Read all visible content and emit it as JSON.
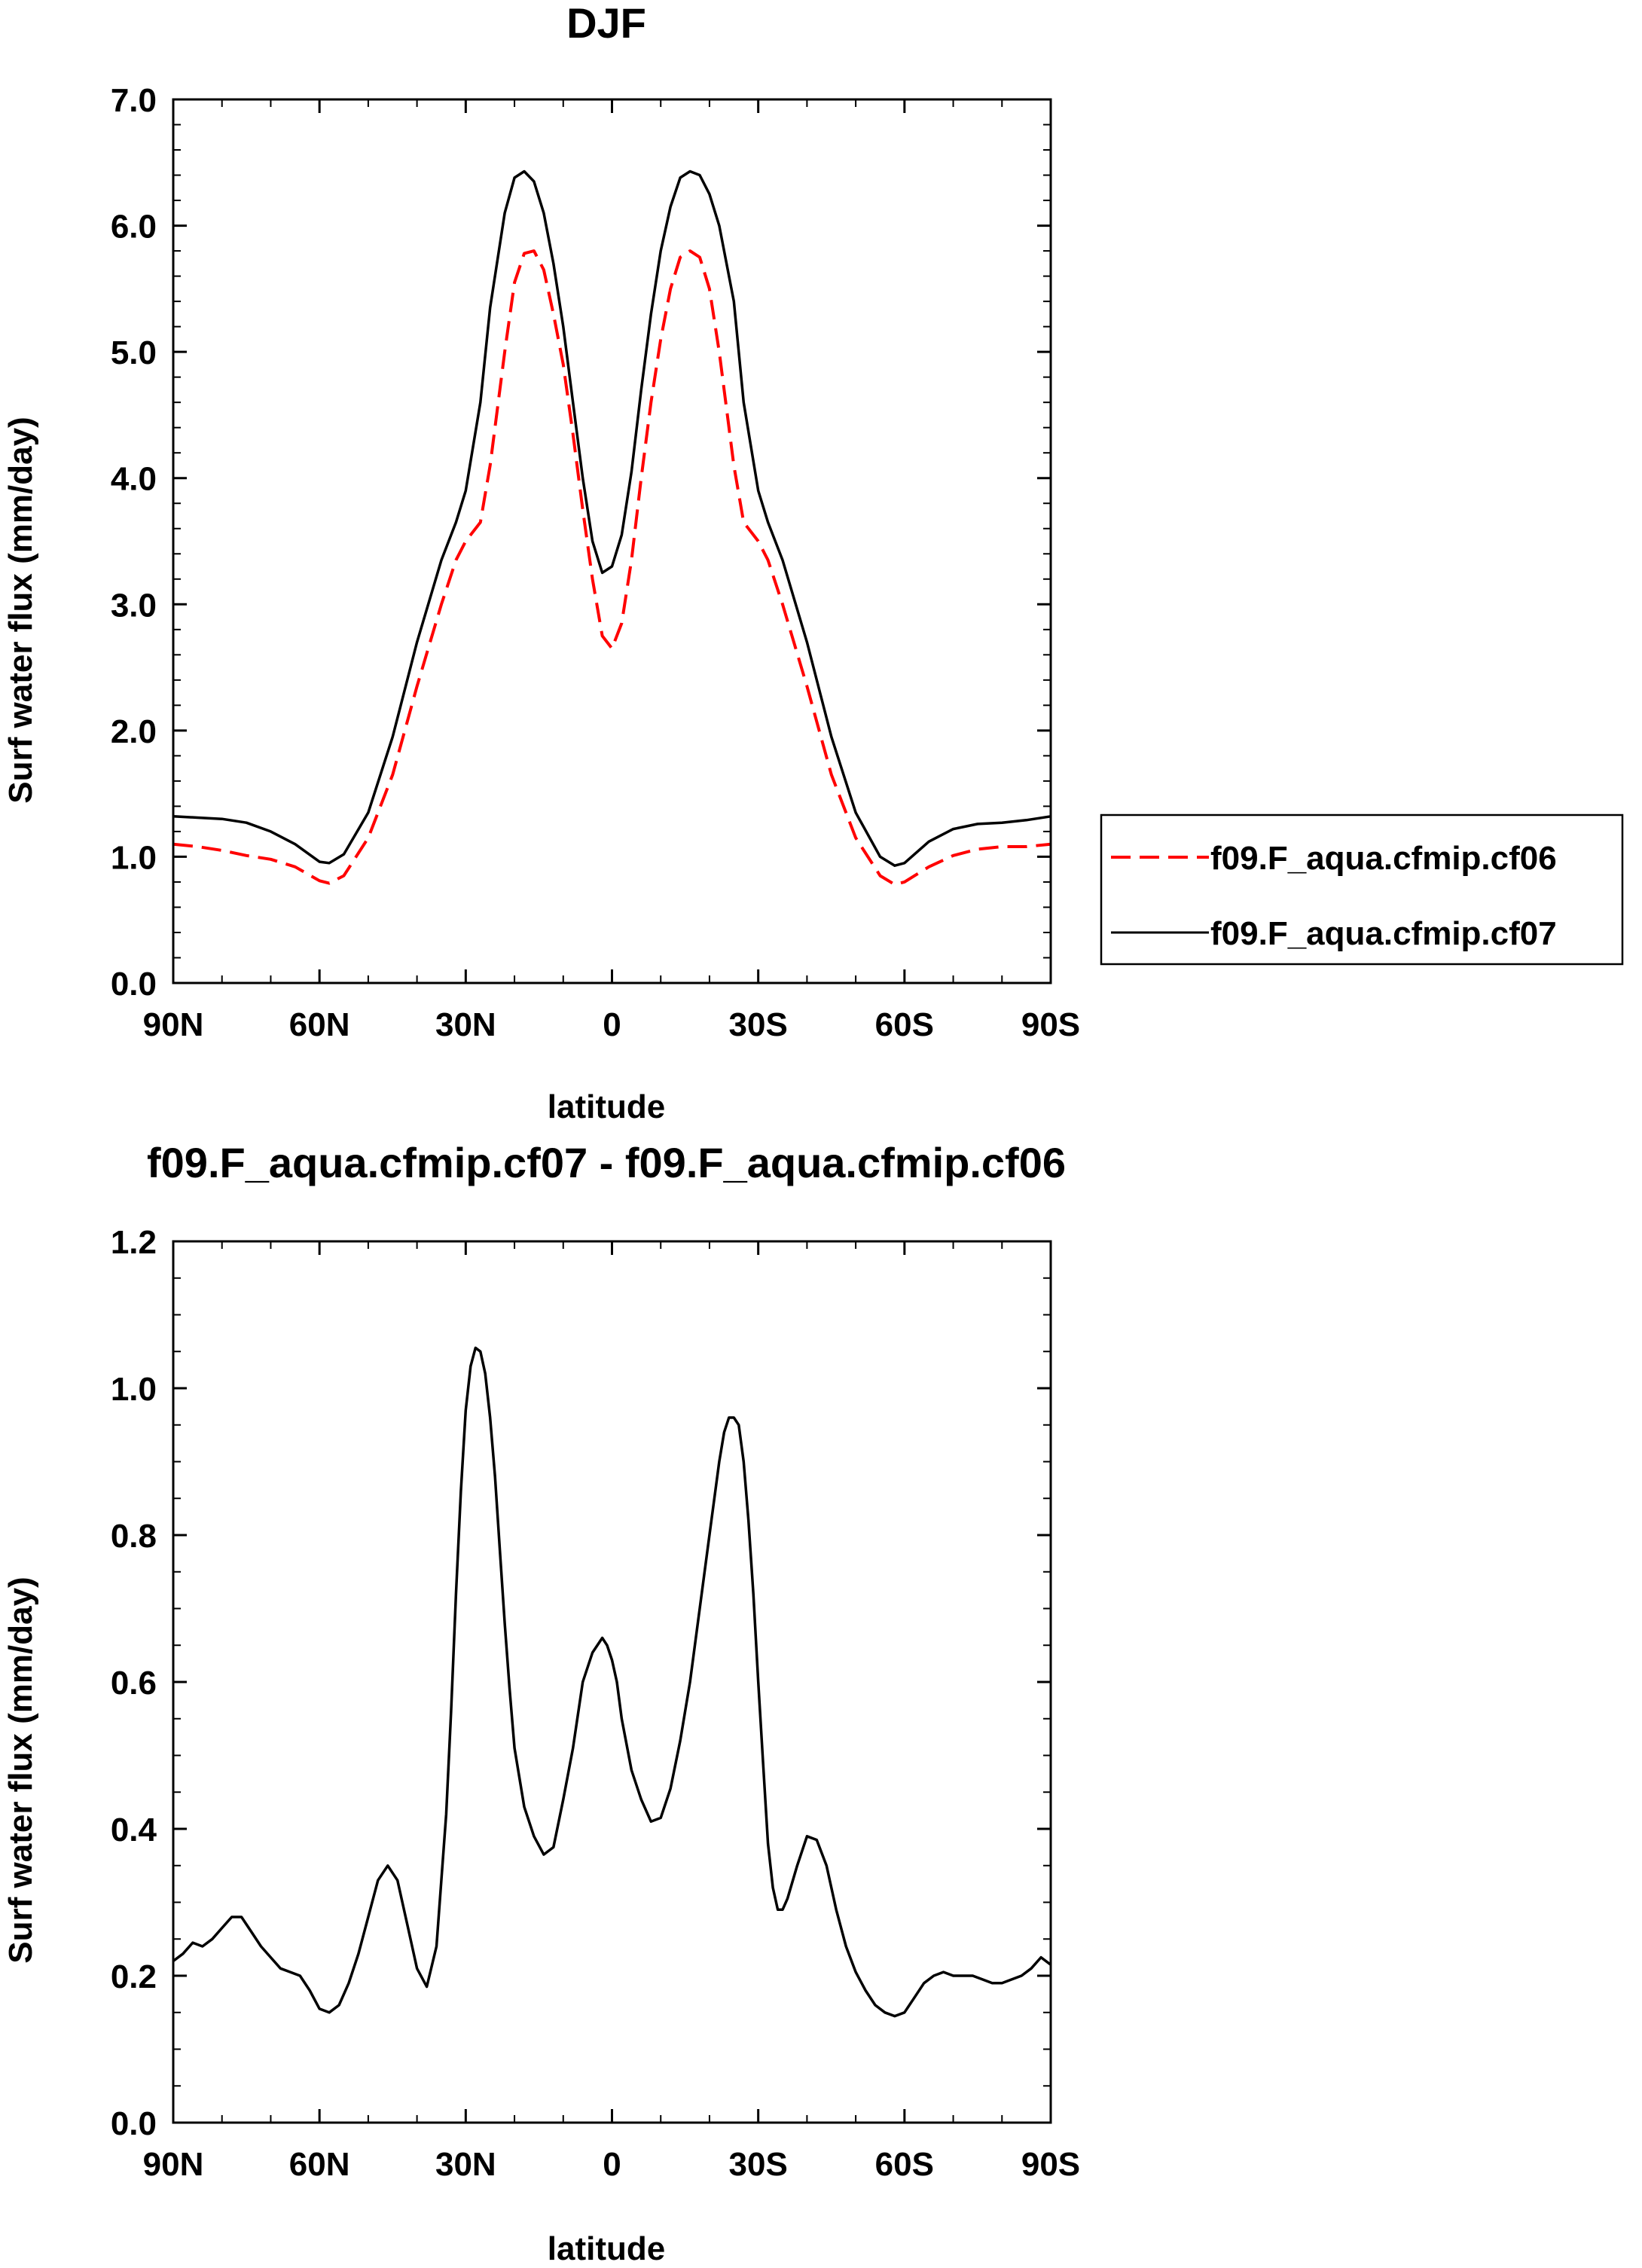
{
  "chart_data": [
    {
      "type": "line",
      "title": "DJF",
      "xlabel": "latitude",
      "ylabel": "Surf water flux (mm/day)",
      "xlim": [
        90,
        -90
      ],
      "ylim": [
        0,
        7
      ],
      "x_ticks": [
        90,
        60,
        30,
        0,
        -30,
        -60,
        -90
      ],
      "x_tick_labels": [
        "90N",
        "60N",
        "30N",
        "0",
        "30S",
        "60S",
        "90S"
      ],
      "y_ticks": [
        0,
        1,
        2,
        3,
        4,
        5,
        6,
        7
      ],
      "y_tick_labels": [
        "0.0",
        "1.0",
        "2.0",
        "3.0",
        "4.0",
        "5.0",
        "6.0",
        "7.0"
      ],
      "legend_position": "right",
      "series": [
        {
          "name": "f09.F_aqua.cfmip.cf06",
          "color": "#ff0000",
          "dash": "dashed",
          "x": [
            90,
            85,
            80,
            75,
            70,
            65,
            60,
            58,
            55,
            50,
            45,
            40,
            35,
            32,
            30,
            27,
            25,
            22,
            20,
            18,
            16,
            14,
            12,
            10,
            8,
            6,
            4,
            2,
            0,
            -2,
            -4,
            -6,
            -8,
            -10,
            -12,
            -14,
            -16,
            -18,
            -20,
            -22,
            -25,
            -27,
            -30,
            -32,
            -35,
            -40,
            -45,
            -50,
            -55,
            -58,
            -60,
            -65,
            -70,
            -75,
            -80,
            -85,
            -90
          ],
          "values": [
            1.1,
            1.08,
            1.05,
            1.01,
            0.98,
            0.92,
            0.81,
            0.79,
            0.85,
            1.15,
            1.65,
            2.35,
            3.0,
            3.35,
            3.5,
            3.65,
            4.1,
            5.0,
            5.55,
            5.78,
            5.8,
            5.65,
            5.3,
            4.9,
            4.35,
            3.75,
            3.2,
            2.75,
            2.65,
            2.85,
            3.35,
            4.0,
            4.6,
            5.1,
            5.5,
            5.75,
            5.8,
            5.75,
            5.5,
            5.0,
            4.1,
            3.65,
            3.5,
            3.35,
            3.0,
            2.35,
            1.65,
            1.15,
            0.85,
            0.78,
            0.8,
            0.92,
            1.01,
            1.06,
            1.08,
            1.08,
            1.1
          ]
        },
        {
          "name": "f09.F_aqua.cfmip.cf07",
          "color": "#000000",
          "dash": "solid",
          "x": [
            90,
            85,
            80,
            75,
            70,
            65,
            60,
            58,
            55,
            50,
            45,
            40,
            35,
            32,
            30,
            27,
            25,
            22,
            20,
            18,
            16,
            14,
            12,
            10,
            8,
            6,
            4,
            2,
            0,
            -2,
            -4,
            -6,
            -8,
            -10,
            -12,
            -14,
            -16,
            -18,
            -20,
            -22,
            -25,
            -27,
            -30,
            -32,
            -35,
            -40,
            -45,
            -50,
            -55,
            -58,
            -60,
            -65,
            -70,
            -75,
            -80,
            -85,
            -90
          ],
          "values": [
            1.32,
            1.31,
            1.3,
            1.27,
            1.2,
            1.1,
            0.96,
            0.95,
            1.02,
            1.35,
            1.95,
            2.7,
            3.35,
            3.65,
            3.9,
            4.6,
            5.35,
            6.1,
            6.38,
            6.43,
            6.35,
            6.1,
            5.7,
            5.2,
            4.6,
            4.0,
            3.5,
            3.25,
            3.3,
            3.55,
            4.05,
            4.7,
            5.3,
            5.8,
            6.15,
            6.38,
            6.43,
            6.4,
            6.25,
            6.0,
            5.4,
            4.6,
            3.9,
            3.65,
            3.35,
            2.7,
            1.95,
            1.35,
            1.0,
            0.93,
            0.95,
            1.12,
            1.22,
            1.26,
            1.27,
            1.29,
            1.32
          ]
        }
      ]
    },
    {
      "type": "line",
      "title": "f09.F_aqua.cfmip.cf07 - f09.F_aqua.cfmip.cf06",
      "xlabel": "latitude",
      "ylabel": "Surf water flux (mm/day)",
      "xlim": [
        90,
        -90
      ],
      "ylim": [
        0,
        1.2
      ],
      "x_ticks": [
        90,
        60,
        30,
        0,
        -30,
        -60,
        -90
      ],
      "x_tick_labels": [
        "90N",
        "60N",
        "30N",
        "0",
        "30S",
        "60S",
        "90S"
      ],
      "y_ticks": [
        0,
        0.2,
        0.4,
        0.6,
        0.8,
        1.0,
        1.2
      ],
      "y_tick_labels": [
        "0.0",
        "0.2",
        "0.4",
        "0.6",
        "0.8",
        "1.0",
        "1.2"
      ],
      "series": [
        {
          "color": "#000000",
          "dash": "solid",
          "x": [
            90,
            88,
            86,
            84,
            82,
            80,
            78,
            76,
            74,
            72,
            70,
            68,
            66,
            64,
            62,
            60,
            58,
            56,
            54,
            52,
            50,
            48,
            46,
            44,
            42,
            40,
            38,
            36,
            34,
            33,
            32,
            31,
            30,
            29,
            28,
            27,
            26,
            25,
            24,
            23,
            22,
            21,
            20,
            18,
            16,
            14,
            12,
            10,
            8,
            6,
            4,
            2,
            1,
            0,
            -1,
            -2,
            -4,
            -6,
            -8,
            -10,
            -12,
            -14,
            -16,
            -18,
            -20,
            -21,
            -22,
            -23,
            -24,
            -25,
            -26,
            -27,
            -28,
            -29,
            -30,
            -31,
            -32,
            -33,
            -34,
            -35,
            -36,
            -38,
            -40,
            -42,
            -44,
            -46,
            -48,
            -50,
            -52,
            -54,
            -56,
            -58,
            -60,
            -62,
            -64,
            -66,
            -68,
            -70,
            -72,
            -74,
            -76,
            -78,
            -80,
            -82,
            -84,
            -86,
            -88,
            -90
          ],
          "values": [
            0.22,
            0.23,
            0.245,
            0.24,
            0.25,
            0.265,
            0.28,
            0.28,
            0.26,
            0.24,
            0.225,
            0.21,
            0.205,
            0.2,
            0.18,
            0.155,
            0.15,
            0.16,
            0.19,
            0.23,
            0.28,
            0.33,
            0.35,
            0.33,
            0.27,
            0.21,
            0.185,
            0.24,
            0.42,
            0.56,
            0.72,
            0.86,
            0.97,
            1.03,
            1.055,
            1.05,
            1.02,
            0.96,
            0.88,
            0.78,
            0.68,
            0.59,
            0.51,
            0.43,
            0.39,
            0.365,
            0.375,
            0.44,
            0.51,
            0.6,
            0.64,
            0.66,
            0.65,
            0.63,
            0.6,
            0.55,
            0.48,
            0.44,
            0.41,
            0.415,
            0.455,
            0.52,
            0.6,
            0.7,
            0.8,
            0.85,
            0.9,
            0.94,
            0.96,
            0.96,
            0.95,
            0.9,
            0.82,
            0.72,
            0.6,
            0.49,
            0.38,
            0.32,
            0.29,
            0.29,
            0.305,
            0.35,
            0.39,
            0.385,
            0.35,
            0.29,
            0.24,
            0.205,
            0.18,
            0.16,
            0.15,
            0.145,
            0.15,
            0.17,
            0.19,
            0.2,
            0.205,
            0.2,
            0.2,
            0.2,
            0.195,
            0.19,
            0.19,
            0.195,
            0.2,
            0.21,
            0.225,
            0.215
          ]
        }
      ]
    }
  ]
}
